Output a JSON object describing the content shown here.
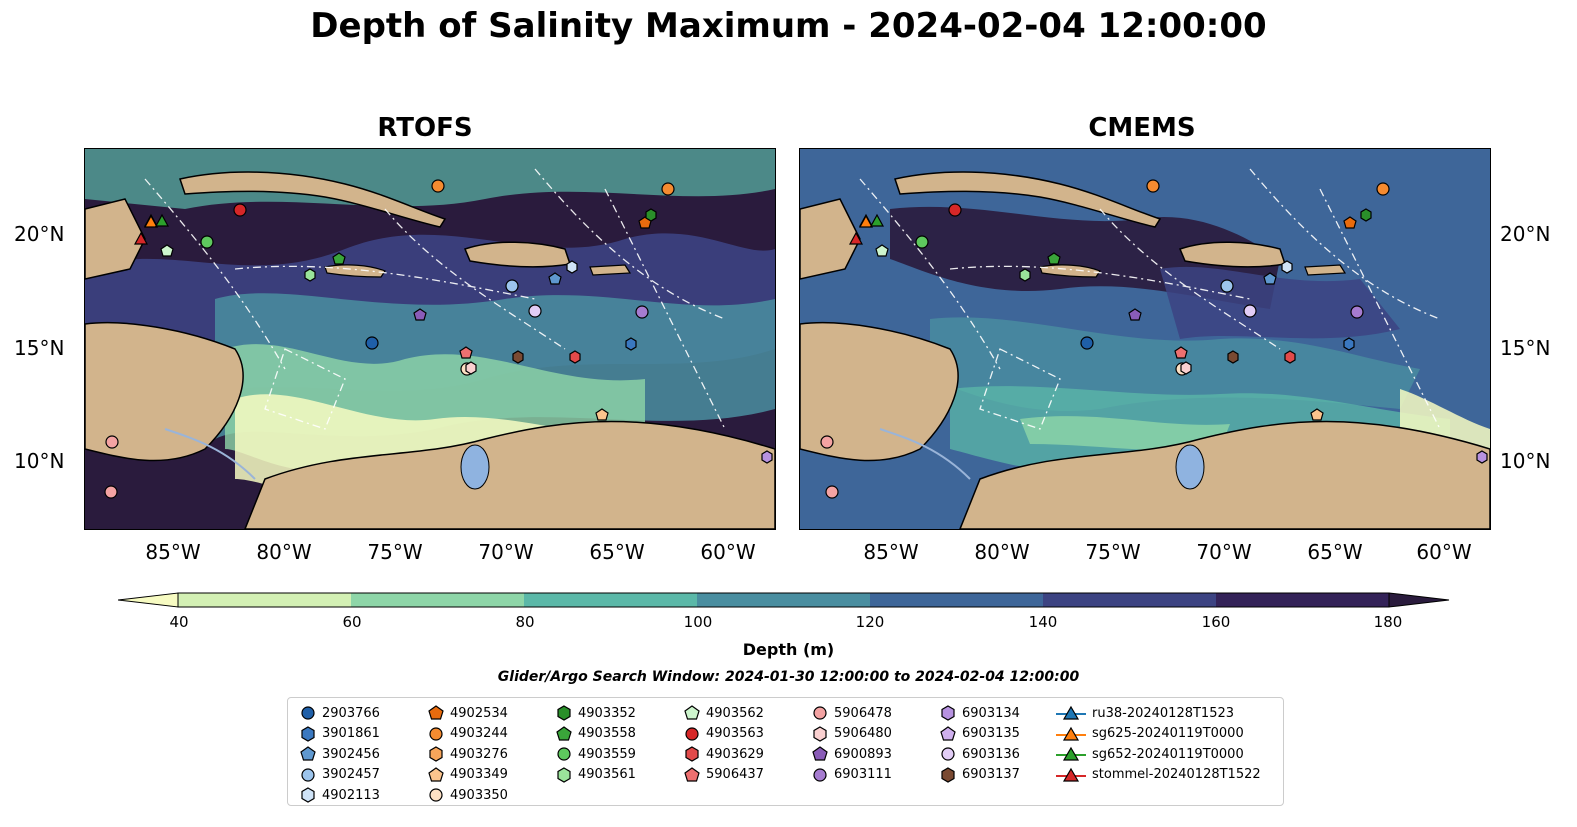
{
  "title": "Depth of Salinity Maximum - 2024-02-04 12:00:00",
  "panels": [
    {
      "title": "RTOFS"
    },
    {
      "title": "CMEMS"
    }
  ],
  "axes": {
    "lat_labels": [
      "20°N",
      "15°N",
      "10°N"
    ],
    "lon_labels": [
      "85°W",
      "80°W",
      "75°W",
      "70°W",
      "65°W",
      "60°W"
    ]
  },
  "colorbar": {
    "label": "Depth (m)",
    "ticks": [
      "40",
      "60",
      "80",
      "100",
      "120",
      "140",
      "160",
      "180"
    ],
    "colors": [
      "#f7fbc2",
      "#d3f0b4",
      "#8ed6a8",
      "#5bb8a8",
      "#4a8ea0",
      "#3e6699",
      "#3c4382",
      "#332258",
      "#2a1b3d"
    ]
  },
  "search_window": "Glider/Argo Search Window: 2024-01-30 12:00:00 to 2024-02-04 12:00:00",
  "legend": {
    "columns": [
      [
        {
          "label": "2903766",
          "shape": "circle",
          "color": "#1f5fa8"
        },
        {
          "label": "3901861",
          "shape": "hexagon",
          "color": "#3a78c0"
        },
        {
          "label": "3902456",
          "shape": "pentagon",
          "color": "#5f98cf"
        },
        {
          "label": "3902457",
          "shape": "circle",
          "color": "#9cc4ec"
        },
        {
          "label": "4902113",
          "shape": "hexagon",
          "color": "#cfe3f7"
        }
      ],
      [
        {
          "label": "4902534",
          "shape": "pentagon",
          "color": "#e86b0e"
        },
        {
          "label": "4903244",
          "shape": "circle",
          "color": "#f58b30"
        },
        {
          "label": "4903276",
          "shape": "hexagon",
          "color": "#f8a55a"
        },
        {
          "label": "4903349",
          "shape": "pentagon",
          "color": "#fbc48d"
        },
        {
          "label": "4903350",
          "shape": "circle",
          "color": "#fde0c4"
        }
      ],
      [
        {
          "label": "4903352",
          "shape": "hexagon",
          "color": "#2a8f2a"
        },
        {
          "label": "4903558",
          "shape": "pentagon",
          "color": "#3aa53a"
        },
        {
          "label": "4903559",
          "shape": "circle",
          "color": "#5ec85e"
        },
        {
          "label": "4903561",
          "shape": "hexagon",
          "color": "#9ae39a"
        }
      ],
      [
        {
          "label": "4903562",
          "shape": "pentagon",
          "color": "#cdf5cd"
        },
        {
          "label": "4903563",
          "shape": "circle",
          "color": "#d62728"
        },
        {
          "label": "4903629",
          "shape": "hexagon",
          "color": "#e24a4a"
        },
        {
          "label": "5906437",
          "shape": "pentagon",
          "color": "#ee7070"
        }
      ],
      [
        {
          "label": "5906478",
          "shape": "circle",
          "color": "#f4a3a3"
        },
        {
          "label": "5906480",
          "shape": "hexagon",
          "color": "#fad0d0"
        },
        {
          "label": "6900893",
          "shape": "pentagon",
          "color": "#8a5cb8"
        },
        {
          "label": "6903111",
          "shape": "circle",
          "color": "#a67cd0"
        }
      ],
      [
        {
          "label": "6903134",
          "shape": "hexagon",
          "color": "#b792e0"
        },
        {
          "label": "6903135",
          "shape": "pentagon",
          "color": "#cfb0ee"
        },
        {
          "label": "6903136",
          "shape": "circle",
          "color": "#e2cdf6"
        },
        {
          "label": "6903137",
          "shape": "hexagon",
          "color": "#7a4a32"
        }
      ],
      [
        {
          "label": "ru38-20240128T1523",
          "shape": "triangle-line",
          "color": "#1f77b4"
        },
        {
          "label": "sg625-20240119T0000",
          "shape": "triangle-line",
          "color": "#ff7f0e"
        },
        {
          "label": "sg652-20240119T0000",
          "shape": "triangle-line",
          "color": "#2ca02c"
        },
        {
          "label": "stommel-20240128T1522",
          "shape": "triangle-line",
          "color": "#d62728"
        }
      ]
    ]
  }
}
